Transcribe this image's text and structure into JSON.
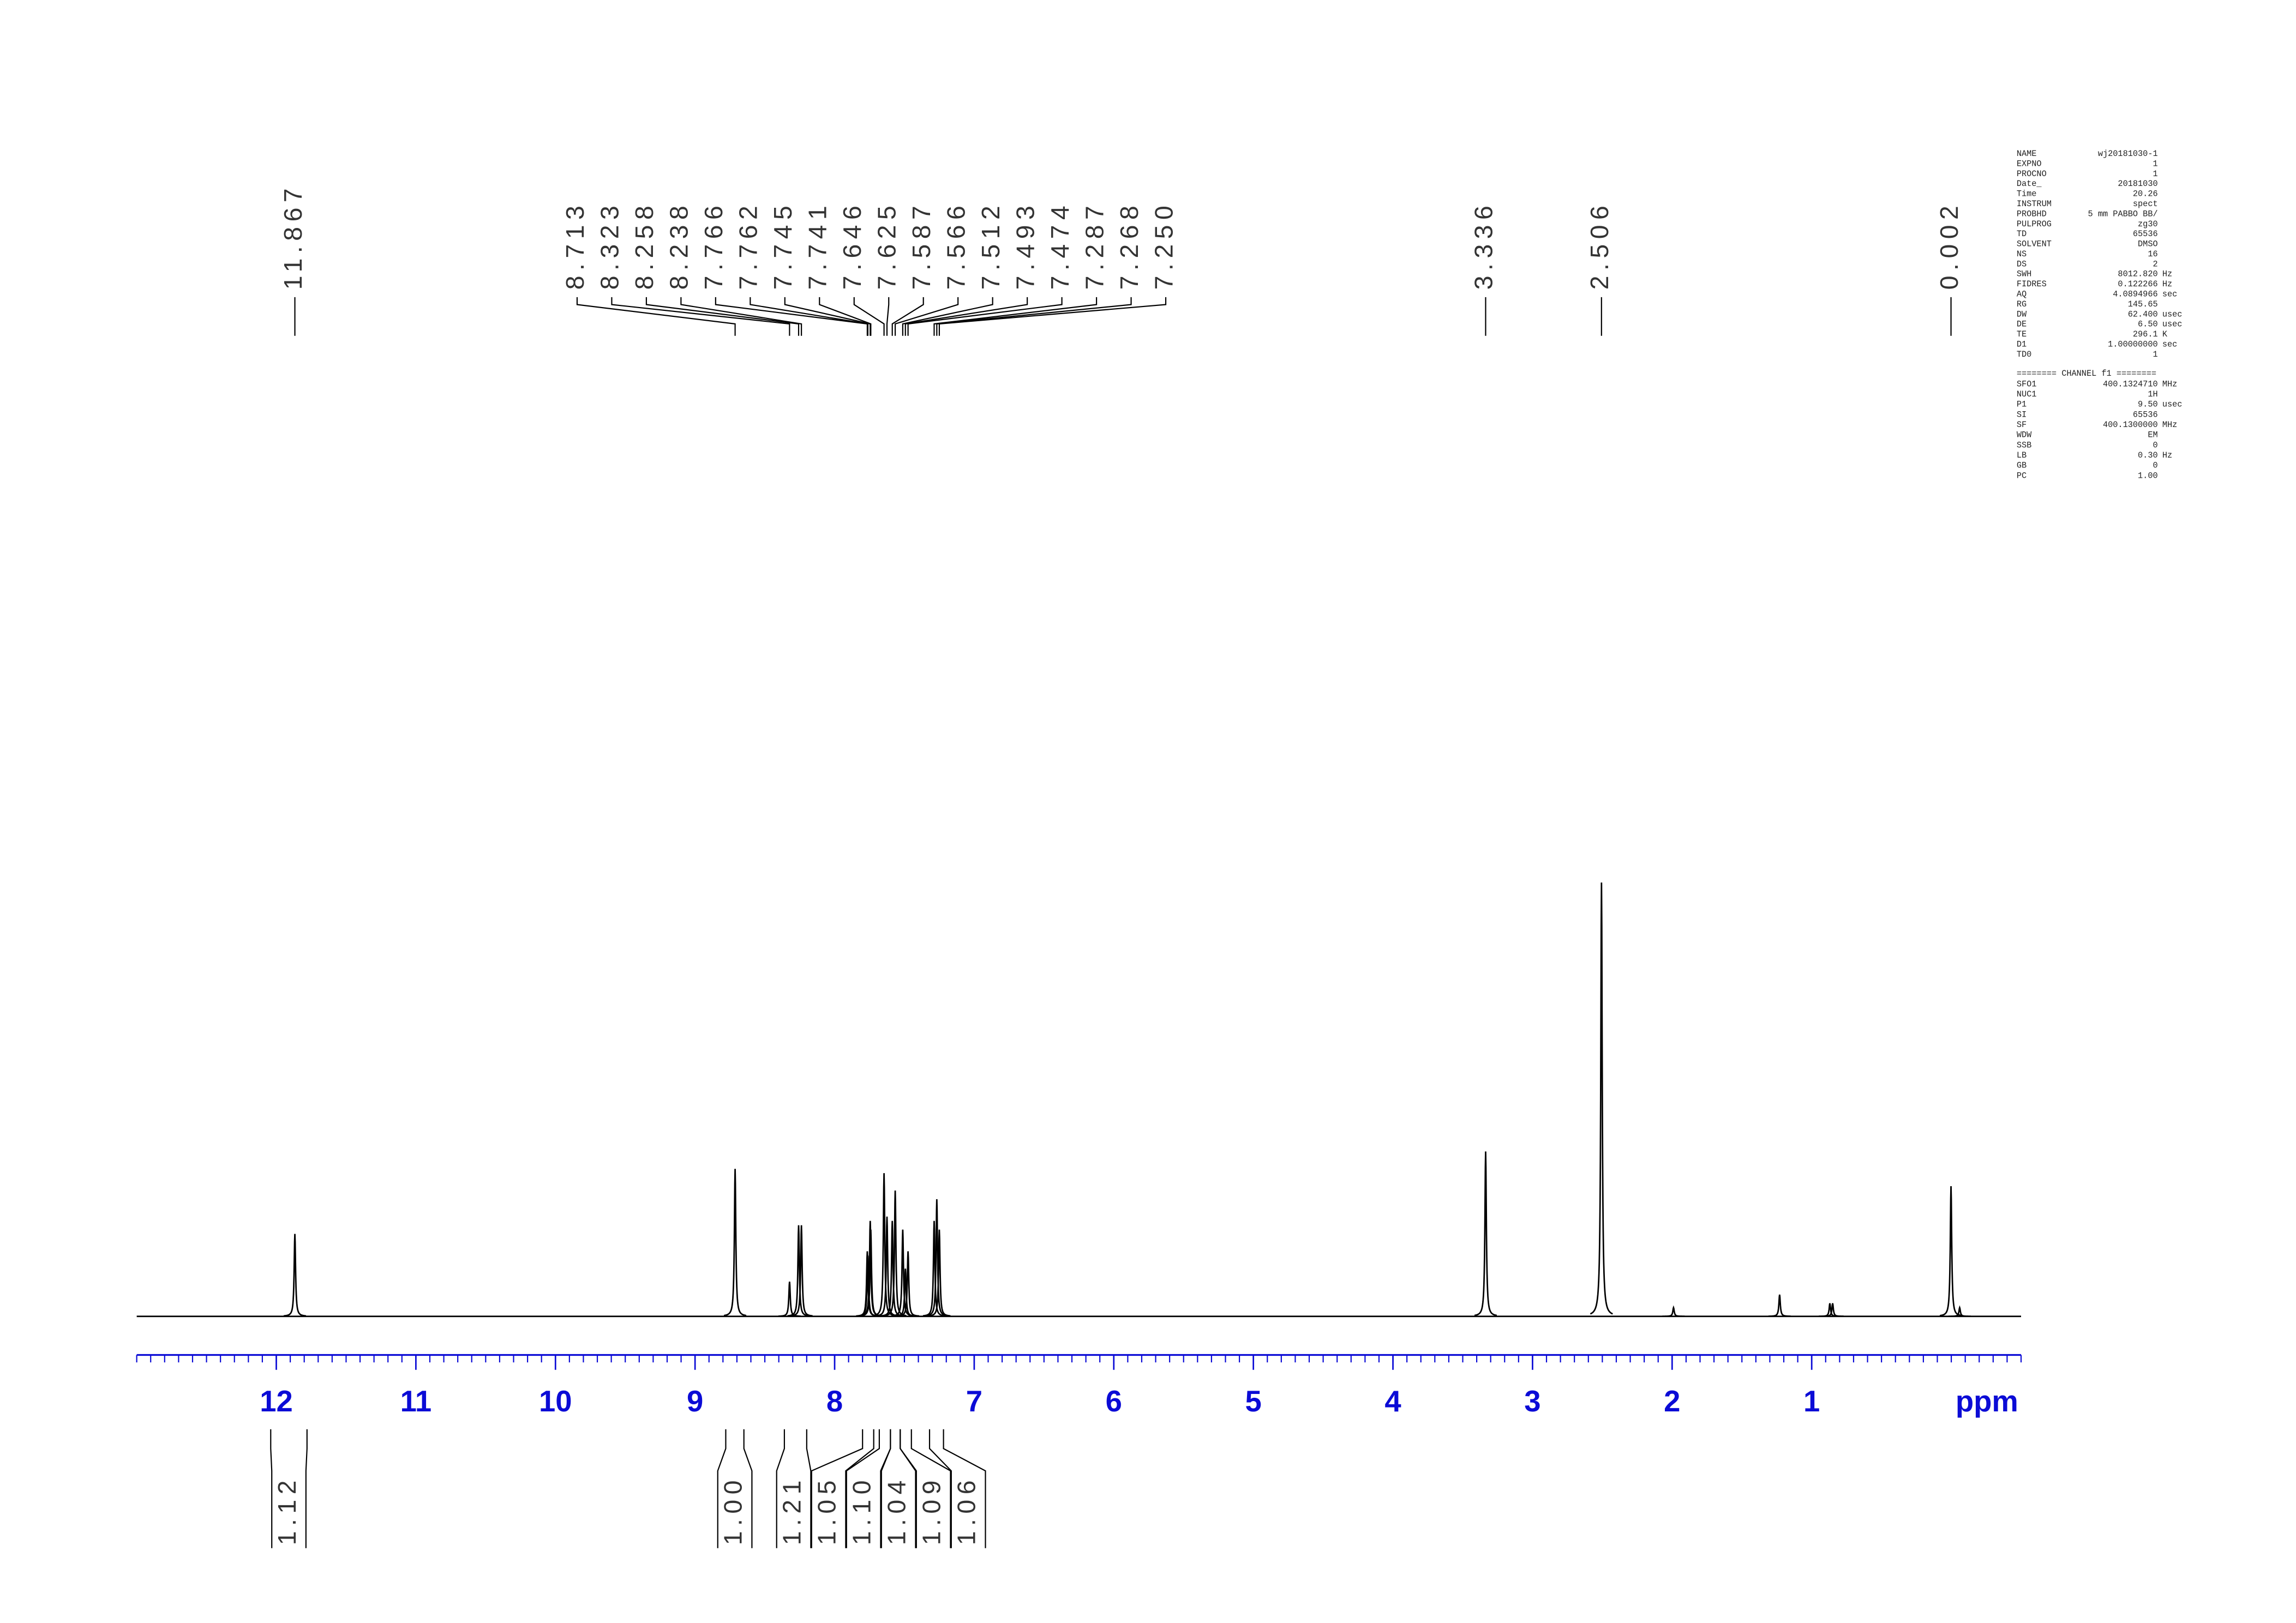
{
  "chart_data": {
    "type": "nmr",
    "xlabel": "ppm",
    "xlim": [
      13.0,
      -0.5
    ],
    "xticks": [
      12,
      11,
      10,
      9,
      8,
      7,
      6,
      5,
      4,
      3,
      2,
      1
    ],
    "minor_tick_step": 0.1,
    "ylim": [
      0,
      100
    ],
    "axis_color": "#0b0bd6",
    "line_color": "#000000",
    "peaks": [
      {
        "x": 11.867,
        "height": 19
      },
      {
        "x": 8.713,
        "height": 34
      },
      {
        "x": 8.323,
        "height": 8
      },
      {
        "x": 8.258,
        "height": 21
      },
      {
        "x": 8.238,
        "height": 21
      },
      {
        "x": 7.766,
        "height": 15
      },
      {
        "x": 7.762,
        "height": 14
      },
      {
        "x": 7.745,
        "height": 22
      },
      {
        "x": 7.741,
        "height": 20
      },
      {
        "x": 7.646,
        "height": 33
      },
      {
        "x": 7.625,
        "height": 23
      },
      {
        "x": 7.587,
        "height": 22
      },
      {
        "x": 7.566,
        "height": 29
      },
      {
        "x": 7.512,
        "height": 20
      },
      {
        "x": 7.493,
        "height": 11
      },
      {
        "x": 7.474,
        "height": 15
      },
      {
        "x": 7.287,
        "height": 22
      },
      {
        "x": 7.268,
        "height": 27
      },
      {
        "x": 7.25,
        "height": 20
      },
      {
        "x": 3.336,
        "height": 38
      },
      {
        "x": 2.506,
        "height": 100
      },
      {
        "x": 1.99,
        "height": 2
      },
      {
        "x": 1.23,
        "height": 5
      },
      {
        "x": 0.87,
        "height": 3
      },
      {
        "x": 0.85,
        "height": 3
      },
      {
        "x": 0.002,
        "height": 30
      },
      {
        "x": -0.06,
        "height": 2
      }
    ],
    "peak_labels": [
      {
        "value": 11.867,
        "label": "11.867"
      },
      {
        "value": 8.713,
        "label": "8.713"
      },
      {
        "value": 8.323,
        "label": "8.323"
      },
      {
        "value": 8.258,
        "label": "8.258"
      },
      {
        "value": 8.238,
        "label": "8.238"
      },
      {
        "value": 7.766,
        "label": "7.766"
      },
      {
        "value": 7.762,
        "label": "7.762"
      },
      {
        "value": 7.745,
        "label": "7.745"
      },
      {
        "value": 7.741,
        "label": "7.741"
      },
      {
        "value": 7.646,
        "label": "7.646"
      },
      {
        "value": 7.625,
        "label": "7.625"
      },
      {
        "value": 7.587,
        "label": "7.587"
      },
      {
        "value": 7.566,
        "label": "7.566"
      },
      {
        "value": 7.512,
        "label": "7.512"
      },
      {
        "value": 7.493,
        "label": "7.493"
      },
      {
        "value": 7.474,
        "label": "7.474"
      },
      {
        "value": 7.287,
        "label": "7.287"
      },
      {
        "value": 7.268,
        "label": "7.268"
      },
      {
        "value": 7.25,
        "label": "7.250"
      },
      {
        "value": 3.336,
        "label": "3.336"
      },
      {
        "value": 2.506,
        "label": "2.506"
      },
      {
        "value": 0.002,
        "label": "0.002"
      }
    ],
    "integrals": [
      {
        "value": 1.12,
        "label": "1.12",
        "range": [
          12.04,
          11.78
        ]
      },
      {
        "value": 1.0,
        "label": "1.00",
        "range": [
          8.78,
          8.65
        ]
      },
      {
        "value": 1.21,
        "label": "1.21",
        "range": [
          8.36,
          8.2
        ]
      },
      {
        "value": 1.05,
        "label": "1.05",
        "range": [
          7.8,
          7.72
        ]
      },
      {
        "value": 1.1,
        "label": "1.10",
        "range": [
          7.68,
          7.6
        ]
      },
      {
        "value": 1.04,
        "label": "1.04",
        "range": [
          7.6,
          7.53
        ]
      },
      {
        "value": 1.09,
        "label": "1.09",
        "range": [
          7.53,
          7.45
        ]
      },
      {
        "value": 1.06,
        "label": "1.06",
        "range": [
          7.32,
          7.22
        ]
      }
    ]
  },
  "parameters": {
    "acquisition": [
      [
        "NAME",
        "wj20181030-1"
      ],
      [
        "EXPNO",
        "1"
      ],
      [
        "PROCNO",
        "1"
      ],
      [
        "Date_",
        "20181030"
      ],
      [
        "Time",
        "20.26"
      ],
      [
        "INSTRUM",
        "spect"
      ],
      [
        "PROBHD",
        "5 mm PABBO BB/"
      ],
      [
        "PULPROG",
        "zg30"
      ],
      [
        "TD",
        "65536"
      ],
      [
        "SOLVENT",
        "DMSO"
      ],
      [
        "NS",
        "16"
      ],
      [
        "DS",
        "2"
      ],
      [
        "SWH",
        "8012.820",
        "Hz"
      ],
      [
        "FIDRES",
        "0.122266",
        "Hz"
      ],
      [
        "AQ",
        "4.0894966",
        "sec"
      ],
      [
        "RG",
        "145.65"
      ],
      [
        "DW",
        "62.400",
        "usec"
      ],
      [
        "DE",
        "6.50",
        "usec"
      ],
      [
        "TE",
        "296.1",
        "K"
      ],
      [
        "D1",
        "1.00000000",
        "sec"
      ],
      [
        "TD0",
        "1"
      ]
    ],
    "channel_title": "======== CHANNEL f1 ========",
    "channel": [
      [
        "SFO1",
        "400.1324710",
        "MHz"
      ],
      [
        "NUC1",
        "1H"
      ],
      [
        "P1",
        "9.50",
        "usec"
      ],
      [
        "SI",
        "65536"
      ],
      [
        "SF",
        "400.1300000",
        "MHz"
      ],
      [
        "WDW",
        "EM"
      ],
      [
        "SSB",
        "0"
      ],
      [
        "LB",
        "0.30",
        "Hz"
      ],
      [
        "GB",
        "0"
      ],
      [
        "PC",
        "1.00"
      ]
    ]
  }
}
